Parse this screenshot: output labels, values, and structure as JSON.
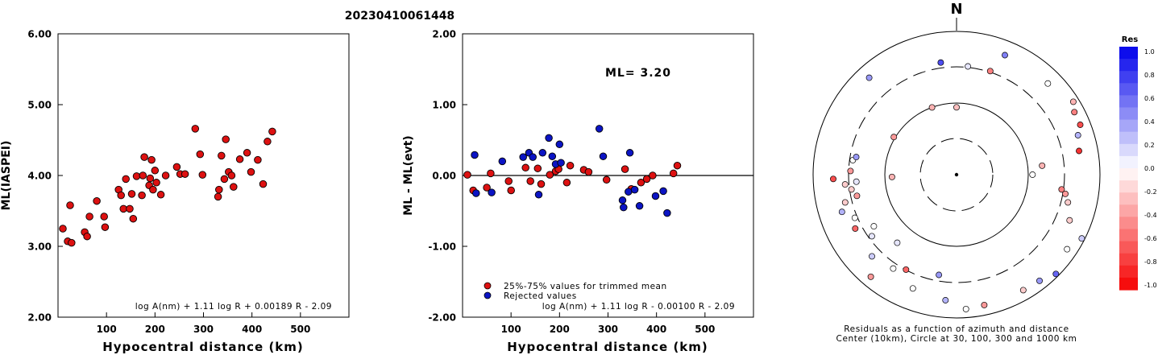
{
  "title": "20230410061448",
  "left_panel": {
    "chart_data": {
      "type": "scatter",
      "xlabel": "Hypocentral distance (km)",
      "ylabel": "ML(IASPEI)",
      "xlim": [
        0,
        600
      ],
      "ylim": [
        2.0,
        6.0
      ],
      "x_ticks": [
        100,
        200,
        300,
        400,
        500
      ],
      "x_tick_labels": [
        "100",
        "200",
        "300",
        "400",
        "500"
      ],
      "y_ticks": [
        2.0,
        3.0,
        4.0,
        5.0,
        6.0
      ],
      "y_tick_labels": [
        "2.00",
        "3.00",
        "4.00",
        "5.00",
        "6.00"
      ],
      "formula": "log A(nm) + 1.11 log R + 0.00189 R - 2.09",
      "point_color": "#dd1111",
      "points": [
        [
          10,
          3.25
        ],
        [
          20,
          3.07
        ],
        [
          25,
          3.58
        ],
        [
          28,
          3.05
        ],
        [
          55,
          3.2
        ],
        [
          60,
          3.14
        ],
        [
          65,
          3.42
        ],
        [
          80,
          3.64
        ],
        [
          95,
          3.42
        ],
        [
          97,
          3.27
        ],
        [
          125,
          3.8
        ],
        [
          130,
          3.72
        ],
        [
          135,
          3.53
        ],
        [
          140,
          3.95
        ],
        [
          148,
          3.53
        ],
        [
          152,
          3.74
        ],
        [
          155,
          3.39
        ],
        [
          162,
          3.99
        ],
        [
          173,
          3.72
        ],
        [
          175,
          4.0
        ],
        [
          178,
          4.26
        ],
        [
          188,
          3.86
        ],
        [
          190,
          3.96
        ],
        [
          193,
          4.22
        ],
        [
          196,
          3.8
        ],
        [
          200,
          4.07
        ],
        [
          203,
          3.9
        ],
        [
          212,
          3.73
        ],
        [
          222,
          4.0
        ],
        [
          245,
          4.12
        ],
        [
          252,
          4.02
        ],
        [
          262,
          4.02
        ],
        [
          283,
          4.66
        ],
        [
          293,
          4.3
        ],
        [
          298,
          4.01
        ],
        [
          330,
          3.7
        ],
        [
          332,
          3.8
        ],
        [
          337,
          4.28
        ],
        [
          343,
          3.95
        ],
        [
          346,
          4.51
        ],
        [
          352,
          4.05
        ],
        [
          358,
          4.0
        ],
        [
          362,
          3.84
        ],
        [
          375,
          4.23
        ],
        [
          390,
          4.32
        ],
        [
          398,
          4.05
        ],
        [
          412,
          4.22
        ],
        [
          423,
          3.88
        ],
        [
          432,
          4.48
        ],
        [
          442,
          4.62
        ]
      ]
    }
  },
  "middle_panel": {
    "chart_data": {
      "type": "scatter",
      "xlabel": "Hypocentral distance (km)",
      "ylabel": "ML - ML(evt)",
      "xlim": [
        0,
        600
      ],
      "ylim": [
        -2.0,
        2.0
      ],
      "x_ticks": [
        100,
        200,
        300,
        400,
        500
      ],
      "x_tick_labels": [
        "100",
        "200",
        "300",
        "400",
        "500"
      ],
      "y_ticks": [
        -2.0,
        -1.0,
        0.0,
        1.0,
        2.0
      ],
      "y_tick_labels": [
        "-2.00",
        "-1.00",
        "0.00",
        "1.00",
        "2.00"
      ],
      "ml_label": "ML= 3.20",
      "formula": "log A(nm) + 1.11 log R - 0.00100 R - 2.09",
      "series": [
        {
          "name": "25%-75% values for trimmed mean",
          "color": "#dd1111",
          "points": [
            [
              10,
              0.01
            ],
            [
              22,
              -0.21
            ],
            [
              50,
              -0.17
            ],
            [
              58,
              0.03
            ],
            [
              95,
              -0.08
            ],
            [
              100,
              -0.21
            ],
            [
              130,
              0.11
            ],
            [
              140,
              -0.08
            ],
            [
              155,
              0.1
            ],
            [
              162,
              -0.12
            ],
            [
              180,
              0.01
            ],
            [
              192,
              0.06
            ],
            [
              198,
              0.09
            ],
            [
              215,
              -0.1
            ],
            [
              222,
              0.14
            ],
            [
              250,
              0.08
            ],
            [
              260,
              0.05
            ],
            [
              297,
              -0.06
            ],
            [
              335,
              0.09
            ],
            [
              348,
              -0.19
            ],
            [
              368,
              -0.1
            ],
            [
              380,
              -0.05
            ],
            [
              392,
              0.0
            ],
            [
              435,
              0.03
            ],
            [
              443,
              0.14
            ]
          ]
        },
        {
          "name": "Rejected values",
          "color": "#0b14c4",
          "points": [
            [
              25,
              0.29
            ],
            [
              28,
              -0.25
            ],
            [
              60,
              -0.24
            ],
            [
              82,
              0.2
            ],
            [
              125,
              0.26
            ],
            [
              137,
              0.32
            ],
            [
              145,
              0.26
            ],
            [
              157,
              -0.27
            ],
            [
              165,
              0.32
            ],
            [
              178,
              0.53
            ],
            [
              185,
              0.27
            ],
            [
              192,
              0.16
            ],
            [
              200,
              0.44
            ],
            [
              203,
              0.18
            ],
            [
              282,
              0.66
            ],
            [
              290,
              0.27
            ],
            [
              330,
              -0.35
            ],
            [
              332,
              -0.45
            ],
            [
              342,
              -0.23
            ],
            [
              345,
              0.32
            ],
            [
              355,
              -0.2
            ],
            [
              365,
              -0.43
            ],
            [
              398,
              -0.29
            ],
            [
              414,
              -0.22
            ],
            [
              422,
              -0.53
            ]
          ]
        }
      ]
    }
  },
  "polar_panel": {
    "north_label": "N",
    "caption_line1": "Residuals as a function of azimuth and distance",
    "caption_line2": "Center (10km), Circle at 30, 100, 300 and 1000 km",
    "points": [
      {
        "az": 0,
        "r": 0.47,
        "res": -0.25
      },
      {
        "az": -8,
        "r": 0.79,
        "res": 0.7
      },
      {
        "az": 6,
        "r": 0.76,
        "res": 0.1
      },
      {
        "az": 18,
        "r": 0.76,
        "res": -0.5
      },
      {
        "az": 22,
        "r": 0.9,
        "res": 0.5
      },
      {
        "az": 45,
        "r": 0.9,
        "res": 0.0
      },
      {
        "az": 58,
        "r": 0.96,
        "res": -0.3
      },
      {
        "az": 62,
        "r": 0.93,
        "res": -0.5
      },
      {
        "az": 68,
        "r": 0.93,
        "res": -0.7
      },
      {
        "az": 72,
        "r": 0.89,
        "res": 0.3
      },
      {
        "az": 79,
        "r": 0.87,
        "res": -0.8
      },
      {
        "az": 84,
        "r": 0.6,
        "res": -0.3
      },
      {
        "az": 90,
        "r": 0.53,
        "res": 0.0
      },
      {
        "az": 98,
        "r": 0.74,
        "res": -0.5
      },
      {
        "az": 100,
        "r": 0.77,
        "res": -0.4
      },
      {
        "az": 104,
        "r": 0.8,
        "res": -0.2
      },
      {
        "az": 112,
        "r": 0.85,
        "res": -0.2
      },
      {
        "az": 117,
        "r": 0.98,
        "res": 0.2
      },
      {
        "az": 124,
        "r": 0.93,
        "res": 0.0
      },
      {
        "az": 135,
        "r": 0.98,
        "res": 0.6
      },
      {
        "az": 142,
        "r": 0.94,
        "res": 0.4
      },
      {
        "az": 150,
        "r": 0.93,
        "res": -0.2
      },
      {
        "az": 168,
        "r": 0.93,
        "res": -0.4
      },
      {
        "az": 176,
        "r": 0.94,
        "res": 0.0
      },
      {
        "az": 185,
        "r": 0.88,
        "res": 0.3
      },
      {
        "az": 190,
        "r": 0.71,
        "res": 0.4
      },
      {
        "az": 201,
        "r": 0.85,
        "res": 0.0
      },
      {
        "az": 208,
        "r": 0.75,
        "res": -0.6
      },
      {
        "az": 214,
        "r": 0.79,
        "res": 0.0
      },
      {
        "az": 220,
        "r": 0.93,
        "res": -0.4
      },
      {
        "az": 221,
        "r": 0.63,
        "res": 0.1
      },
      {
        "az": 226,
        "r": 0.82,
        "res": 0.2
      },
      {
        "az": 234,
        "r": 0.73,
        "res": 0.1
      },
      {
        "az": 238,
        "r": 0.68,
        "res": 0.0
      },
      {
        "az": 242,
        "r": 0.8,
        "res": -0.6
      },
      {
        "az": 247,
        "r": 0.77,
        "res": 0.0
      },
      {
        "az": 252,
        "r": 0.84,
        "res": 0.3
      },
      {
        "az": 256,
        "r": 0.8,
        "res": -0.2
      },
      {
        "az": 258,
        "r": 0.71,
        "res": -0.4
      },
      {
        "az": 262,
        "r": 0.74,
        "res": -0.2
      },
      {
        "az": 265,
        "r": 0.78,
        "res": -0.2
      },
      {
        "az": 266,
        "r": 0.7,
        "res": 0.1
      },
      {
        "az": 268,
        "r": 0.86,
        "res": -0.7
      },
      {
        "az": 272,
        "r": 0.74,
        "res": -0.4
      },
      {
        "az": 278,
        "r": 0.73,
        "res": 0.0
      },
      {
        "az": 280,
        "r": 0.71,
        "res": 0.4
      },
      {
        "az": 268,
        "r": 0.45,
        "res": -0.3
      },
      {
        "az": 301,
        "r": 0.51,
        "res": -0.4
      },
      {
        "az": 318,
        "r": 0.91,
        "res": 0.4
      },
      {
        "az": 340,
        "r": 0.5,
        "res": -0.3
      }
    ],
    "colorbar": {
      "title": "Res",
      "tick_labels": [
        "1.0",
        "0.8",
        "0.6",
        "0.4",
        "0.2",
        "0.0",
        "-0.2",
        "-0.4",
        "-0.6",
        "-0.8",
        "-1.0"
      ]
    }
  }
}
